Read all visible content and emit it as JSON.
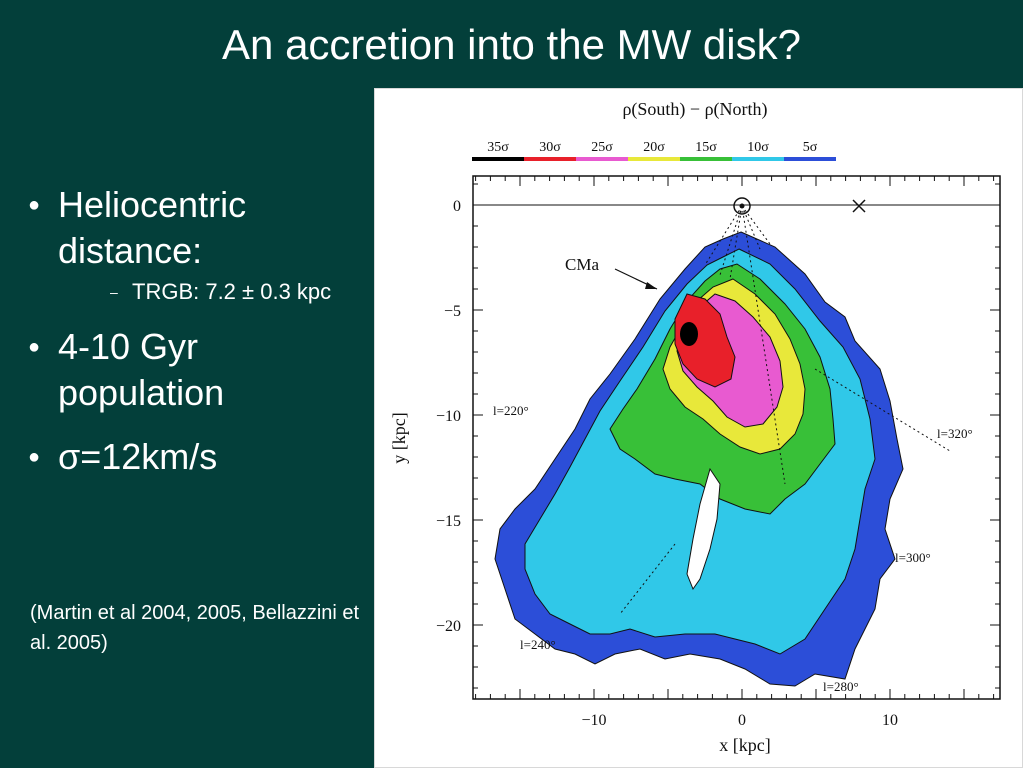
{
  "slide": {
    "title": "An accretion into the MW disk?",
    "bullets": [
      {
        "text": "Heliocentric distance:",
        "sub": "TRGB: 7.2 ± 0.3 kpc"
      },
      {
        "text": "4-10 Gyr population"
      },
      {
        "text": "σ=12km/s"
      }
    ],
    "citation": "(Martin et al 2004, 2005, Bellazzini et al. 2005)"
  },
  "figure": {
    "title": "ρ(South) − ρ(North)",
    "colorbar": [
      {
        "label": "35σ",
        "color": "#000000"
      },
      {
        "label": "30σ",
        "color": "#e8202a"
      },
      {
        "label": "25σ",
        "color": "#e85ad0"
      },
      {
        "label": "20σ",
        "color": "#e8e83a"
      },
      {
        "label": "15σ",
        "color": "#38c038"
      },
      {
        "label": "10σ",
        "color": "#30c8e8"
      },
      {
        "label": "5σ",
        "color": "#2c4ed8"
      }
    ],
    "xlabel": "x [kpc]",
    "ylabel": "y [kpc]",
    "x_ticks": [
      "−10",
      "0",
      "10"
    ],
    "y_ticks": [
      "0",
      "−5",
      "−10",
      "−15",
      "−20"
    ],
    "annotations": {
      "cma": "CMa",
      "l220": "l=220°",
      "l240": "l=240°",
      "l280": "l=280°",
      "l300": "l=300°",
      "l320": "l=320°"
    }
  }
}
